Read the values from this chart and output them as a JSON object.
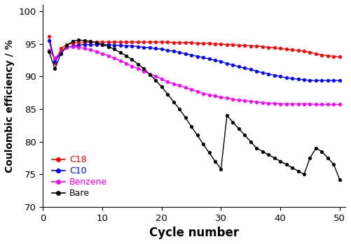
{
  "title": "",
  "xlabel": "Cycle number",
  "ylabel": "Coulombic efficiency / %",
  "xlim": [
    0,
    51
  ],
  "ylim": [
    70,
    101
  ],
  "yticks": [
    70,
    75,
    80,
    85,
    90,
    95,
    100
  ],
  "xticks": [
    0,
    10,
    20,
    30,
    40,
    50
  ],
  "series": {
    "C18": {
      "color": "#ff0000",
      "x": [
        1,
        2,
        3,
        4,
        5,
        6,
        7,
        8,
        9,
        10,
        11,
        12,
        13,
        14,
        15,
        16,
        17,
        18,
        19,
        20,
        21,
        22,
        23,
        24,
        25,
        26,
        27,
        28,
        29,
        30,
        31,
        32,
        33,
        34,
        35,
        36,
        37,
        38,
        39,
        40,
        41,
        42,
        43,
        44,
        45,
        46,
        47,
        48,
        49,
        50
      ],
      "y": [
        96.2,
        92.1,
        94.3,
        94.9,
        95.1,
        95.2,
        95.2,
        95.3,
        95.3,
        95.3,
        95.3,
        95.3,
        95.3,
        95.3,
        95.3,
        95.3,
        95.3,
        95.3,
        95.3,
        95.3,
        95.3,
        95.2,
        95.2,
        95.2,
        95.2,
        95.1,
        95.1,
        95.1,
        95.0,
        95.0,
        94.9,
        94.9,
        94.8,
        94.8,
        94.7,
        94.7,
        94.6,
        94.5,
        94.4,
        94.3,
        94.2,
        94.1,
        94.0,
        93.9,
        93.7,
        93.5,
        93.3,
        93.2,
        93.1,
        93.0
      ]
    },
    "C10": {
      "color": "#0000ff",
      "x": [
        1,
        2,
        3,
        4,
        5,
        6,
        7,
        8,
        9,
        10,
        11,
        12,
        13,
        14,
        15,
        16,
        17,
        18,
        19,
        20,
        21,
        22,
        23,
        24,
        25,
        26,
        27,
        28,
        29,
        30,
        31,
        32,
        33,
        34,
        35,
        36,
        37,
        38,
        39,
        40,
        41,
        42,
        43,
        44,
        45,
        46,
        47,
        48,
        49,
        50
      ],
      "y": [
        95.5,
        92.3,
        93.7,
        94.4,
        94.7,
        94.8,
        94.9,
        94.9,
        94.9,
        94.9,
        94.9,
        94.8,
        94.8,
        94.7,
        94.7,
        94.6,
        94.5,
        94.4,
        94.3,
        94.2,
        94.0,
        93.9,
        93.7,
        93.5,
        93.3,
        93.1,
        92.9,
        92.7,
        92.5,
        92.3,
        92.0,
        91.8,
        91.5,
        91.3,
        91.1,
        90.8,
        90.6,
        90.4,
        90.2,
        90.0,
        89.8,
        89.7,
        89.6,
        89.5,
        89.4,
        89.4,
        89.4,
        89.4,
        89.4,
        89.4
      ]
    },
    "Benzene": {
      "color": "#ff00ff",
      "x": [
        1,
        2,
        3,
        4,
        5,
        6,
        7,
        8,
        9,
        10,
        11,
        12,
        13,
        14,
        15,
        16,
        17,
        18,
        19,
        20,
        21,
        22,
        23,
        24,
        25,
        26,
        27,
        28,
        29,
        30,
        31,
        32,
        33,
        34,
        35,
        36,
        37,
        38,
        39,
        40,
        41,
        42,
        43,
        44,
        45,
        46,
        47,
        48,
        49,
        50
      ],
      "y": [
        94.0,
        92.8,
        93.8,
        94.4,
        94.6,
        94.5,
        94.3,
        94.1,
        93.8,
        93.5,
        93.2,
        92.8,
        92.4,
        92.0,
        91.6,
        91.2,
        90.8,
        90.4,
        90.0,
        89.6,
        89.2,
        88.9,
        88.6,
        88.3,
        88.0,
        87.7,
        87.4,
        87.2,
        87.0,
        86.8,
        86.7,
        86.5,
        86.4,
        86.3,
        86.2,
        86.1,
        86.0,
        85.9,
        85.9,
        85.8,
        85.8,
        85.8,
        85.8,
        85.8,
        85.8,
        85.7,
        85.7,
        85.7,
        85.7,
        85.7
      ]
    },
    "Bare": {
      "color": "#000000",
      "x": [
        1,
        2,
        3,
        4,
        5,
        6,
        7,
        8,
        9,
        10,
        11,
        12,
        13,
        14,
        15,
        16,
        17,
        18,
        19,
        20,
        21,
        22,
        23,
        24,
        25,
        26,
        27,
        28,
        29,
        30,
        31,
        32,
        33,
        34,
        35,
        36,
        37,
        38,
        39,
        40,
        41,
        42,
        43,
        44,
        45,
        46,
        47,
        48,
        49,
        50
      ],
      "y": [
        93.8,
        91.2,
        93.5,
        94.8,
        95.4,
        95.6,
        95.5,
        95.4,
        95.2,
        94.9,
        94.6,
        94.2,
        93.7,
        93.2,
        92.6,
        91.9,
        91.2,
        90.3,
        89.4,
        88.4,
        87.3,
        86.1,
        85.0,
        83.7,
        82.3,
        81.0,
        79.6,
        78.3,
        77.0,
        75.8,
        84.0,
        83.0,
        82.0,
        81.0,
        80.0,
        79.0,
        78.5,
        78.0,
        77.5,
        77.0,
        76.5,
        76.0,
        75.5,
        75.0,
        77.5,
        79.0,
        78.5,
        77.5,
        76.5,
        74.2
      ]
    }
  },
  "legend_order": [
    "C18",
    "C10",
    "Benzene",
    "Bare"
  ],
  "legend_colors": {
    "C18": "#ff0000",
    "C10": "#0000ff",
    "Benzene": "#ff00ff",
    "Bare": "#000000"
  }
}
